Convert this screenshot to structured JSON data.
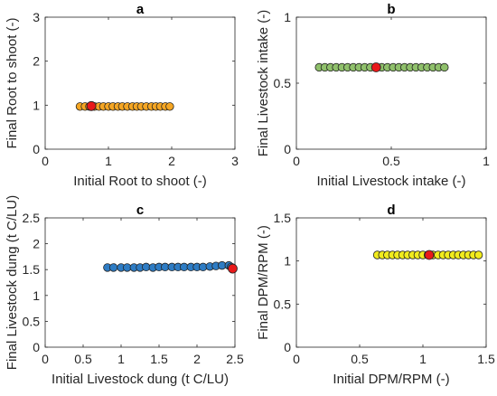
{
  "chart_data": [
    {
      "type": "scatter",
      "panel_label": "a",
      "xlabel": "Initial Root to shoot (-)",
      "ylabel": "Final Root to shoot (-)",
      "xlim": [
        0,
        3
      ],
      "ylim": [
        0,
        3
      ],
      "xticks": [
        0,
        1,
        2,
        3
      ],
      "yticks": [
        0,
        1,
        2,
        3
      ],
      "xticklabels": [
        "0",
        "1",
        "2",
        "3"
      ],
      "yticklabels": [
        "0",
        "1",
        "2",
        "3"
      ],
      "grid": false,
      "series": [
        {
          "color": "#F5A623",
          "x": [
            0.55,
            0.63,
            0.7,
            0.78,
            0.85,
            0.92,
            1.0,
            1.07,
            1.15,
            1.22,
            1.3,
            1.38,
            1.45,
            1.52,
            1.6,
            1.68,
            1.75,
            1.82,
            1.9,
            1.97
          ],
          "y": [
            0.97,
            0.97,
            0.97,
            0.97,
            0.97,
            0.97,
            0.97,
            0.97,
            0.97,
            0.97,
            0.97,
            0.97,
            0.97,
            0.97,
            0.97,
            0.97,
            0.97,
            0.97,
            0.97,
            0.97
          ]
        },
        {
          "color": "#E8191A",
          "x": [
            0.73
          ],
          "y": [
            0.98
          ]
        }
      ]
    },
    {
      "type": "scatter",
      "panel_label": "b",
      "xlabel": "Initial Livestock intake (-)",
      "ylabel": "Final Livestock intake (-)",
      "xlim": [
        0,
        1
      ],
      "ylim": [
        0,
        1
      ],
      "xticks": [
        0,
        0.5,
        1
      ],
      "yticks": [
        0,
        0.5,
        1
      ],
      "xticklabels": [
        "0",
        "0.5",
        "1"
      ],
      "yticklabels": [
        "0",
        "0.5",
        "1"
      ],
      "grid": false,
      "series": [
        {
          "color": "#8FC06B",
          "x": [
            0.12,
            0.15,
            0.18,
            0.21,
            0.24,
            0.27,
            0.3,
            0.33,
            0.36,
            0.39,
            0.42,
            0.45,
            0.48,
            0.51,
            0.54,
            0.57,
            0.6,
            0.63,
            0.66,
            0.69,
            0.72,
            0.75,
            0.78
          ],
          "y": [
            0.62,
            0.62,
            0.62,
            0.62,
            0.62,
            0.62,
            0.62,
            0.62,
            0.62,
            0.62,
            0.62,
            0.62,
            0.62,
            0.62,
            0.62,
            0.62,
            0.62,
            0.62,
            0.62,
            0.62,
            0.62,
            0.62,
            0.62
          ]
        },
        {
          "color": "#E8191A",
          "x": [
            0.42
          ],
          "y": [
            0.62
          ]
        }
      ]
    },
    {
      "type": "scatter",
      "panel_label": "c",
      "xlabel": "Initial Livestock dung (t C/LU)",
      "ylabel": "Final Livestock dung (t C/LU)",
      "xlim": [
        0,
        2.5
      ],
      "ylim": [
        0,
        2.5
      ],
      "xticks": [
        0,
        0.5,
        1,
        1.5,
        2,
        2.5
      ],
      "yticks": [
        0,
        0.5,
        1,
        1.5,
        2,
        2.5
      ],
      "xticklabels": [
        "0",
        "0.5",
        "1",
        "1.5",
        "2",
        "2.5"
      ],
      "yticklabels": [
        "0",
        "0.5",
        "1",
        "1.5",
        "2",
        "2.5"
      ],
      "grid": false,
      "series": [
        {
          "color": "#2E7CC4",
          "x": [
            0.82,
            0.9,
            1.0,
            1.08,
            1.17,
            1.25,
            1.33,
            1.42,
            1.5,
            1.58,
            1.67,
            1.75,
            1.83,
            1.92,
            2.0,
            2.08,
            2.17,
            2.25,
            2.33,
            2.42,
            2.45
          ],
          "y": [
            1.54,
            1.54,
            1.54,
            1.54,
            1.54,
            1.54,
            1.55,
            1.54,
            1.55,
            1.55,
            1.55,
            1.55,
            1.55,
            1.55,
            1.55,
            1.55,
            1.56,
            1.57,
            1.58,
            1.58,
            1.55
          ]
        },
        {
          "color": "#E8191A",
          "x": [
            2.47
          ],
          "y": [
            1.52
          ]
        }
      ]
    },
    {
      "type": "scatter",
      "panel_label": "d",
      "xlabel": "Initial DPM/RPM (-)",
      "ylabel": "Final DPM/RPM (-)",
      "xlim": [
        0,
        1.5
      ],
      "ylim": [
        0,
        1.5
      ],
      "xticks": [
        0,
        0.5,
        1,
        1.5
      ],
      "yticks": [
        0,
        0.5,
        1,
        1.5
      ],
      "xticklabels": [
        "0",
        "0.5",
        "1",
        "1.5"
      ],
      "yticklabels": [
        "0",
        "0.5",
        "1",
        "1.5"
      ],
      "grid": false,
      "series": [
        {
          "color": "#F2EC1C",
          "x": [
            0.64,
            0.68,
            0.72,
            0.76,
            0.8,
            0.84,
            0.88,
            0.92,
            0.96,
            1.0,
            1.04,
            1.08,
            1.12,
            1.16,
            1.2,
            1.24,
            1.28,
            1.32,
            1.36,
            1.4,
            1.44
          ],
          "y": [
            1.07,
            1.07,
            1.07,
            1.07,
            1.07,
            1.07,
            1.07,
            1.07,
            1.07,
            1.07,
            1.07,
            1.07,
            1.07,
            1.07,
            1.07,
            1.07,
            1.07,
            1.07,
            1.07,
            1.07,
            1.07
          ]
        },
        {
          "color": "#E8191A",
          "x": [
            1.05
          ],
          "y": [
            1.07
          ]
        }
      ]
    }
  ]
}
